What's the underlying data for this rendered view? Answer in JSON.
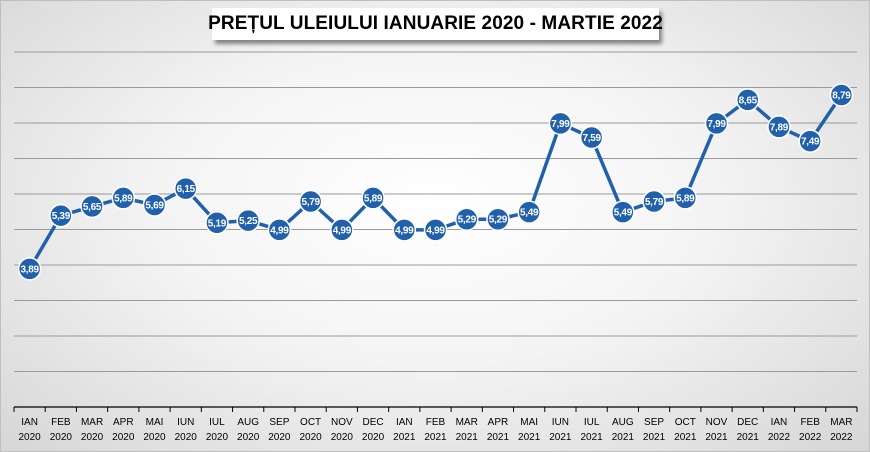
{
  "chart_data": {
    "type": "line",
    "title": "PREȚUL ULEIULUI IANUARIE 2020 - MARTIE 2022",
    "xlabel": "",
    "ylabel": "",
    "categories": [
      [
        "IAN",
        "2020"
      ],
      [
        "FEB",
        "2020"
      ],
      [
        "MAR",
        "2020"
      ],
      [
        "APR",
        "2020"
      ],
      [
        "MAI",
        "2020"
      ],
      [
        "IUN",
        "2020"
      ],
      [
        "IUL",
        "2020"
      ],
      [
        "AUG",
        "2020"
      ],
      [
        "SEP",
        "2020"
      ],
      [
        "OCT",
        "2020"
      ],
      [
        "NOV",
        "2020"
      ],
      [
        "DEC",
        "2020"
      ],
      [
        "IAN",
        "2021"
      ],
      [
        "FEB",
        "2021"
      ],
      [
        "MAR",
        "2021"
      ],
      [
        "APR",
        "2021"
      ],
      [
        "MAI",
        "2021"
      ],
      [
        "IUN",
        "2021"
      ],
      [
        "IUL",
        "2021"
      ],
      [
        "AUG",
        "2021"
      ],
      [
        "SEP",
        "2021"
      ],
      [
        "OCT",
        "2021"
      ],
      [
        "NOV",
        "2021"
      ],
      [
        "DEC",
        "2021"
      ],
      [
        "IAN",
        "2022"
      ],
      [
        "FEB",
        "2022"
      ],
      [
        "MAR",
        "2022"
      ]
    ],
    "values": [
      3.89,
      5.39,
      5.65,
      5.89,
      5.69,
      6.15,
      5.19,
      5.25,
      4.99,
      5.79,
      4.99,
      5.89,
      4.99,
      4.99,
      5.29,
      5.29,
      5.49,
      7.99,
      7.59,
      5.49,
      5.79,
      5.89,
      7.99,
      8.65,
      7.89,
      7.49,
      8.79
    ],
    "labels": [
      "3,89",
      "5,39",
      "5,65",
      "5,89",
      "5,69",
      "6,15",
      "5,19",
      "5,25",
      "4,99",
      "5,79",
      "4,99",
      "5,89",
      "4,99",
      "4,99",
      "5,29",
      "5,29",
      "5,49",
      "7,99",
      "7,59",
      "5,49",
      "5,79",
      "5,89",
      "7,99",
      "8,65",
      "7,89",
      "7,49",
      "8,79"
    ],
    "ylim": [
      0,
      10
    ],
    "grid": true,
    "legend": "none",
    "colors": {
      "line": "#2160ab",
      "marker": "#2160ab",
      "grid": "#9a9a9a",
      "axis": "#000000"
    }
  }
}
